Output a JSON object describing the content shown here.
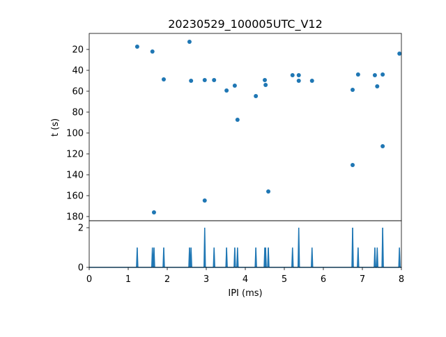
{
  "chart_data": [
    {
      "type": "scatter",
      "title": "20230529_100005UTC_V12",
      "xlabel": "",
      "ylabel": "t (s)",
      "xlim": [
        0,
        8
      ],
      "ylim": [
        183,
        5
      ],
      "y_inverted": true,
      "yticks": [
        20,
        40,
        60,
        80,
        100,
        120,
        140,
        160,
        180
      ],
      "color": "#1f77b4",
      "points": [
        {
          "x": 1.23,
          "y": 17.3
        },
        {
          "x": 1.62,
          "y": 22
        },
        {
          "x": 1.91,
          "y": 48.7
        },
        {
          "x": 2.57,
          "y": 12.7
        },
        {
          "x": 2.61,
          "y": 50
        },
        {
          "x": 2.96,
          "y": 49.3
        },
        {
          "x": 3.2,
          "y": 49.3
        },
        {
          "x": 3.52,
          "y": 59.3
        },
        {
          "x": 3.73,
          "y": 54.7
        },
        {
          "x": 3.8,
          "y": 87.3
        },
        {
          "x": 4.27,
          "y": 64.7
        },
        {
          "x": 4.5,
          "y": 49.3
        },
        {
          "x": 4.52,
          "y": 54
        },
        {
          "x": 5.21,
          "y": 44.7
        },
        {
          "x": 5.37,
          "y": 44.7
        },
        {
          "x": 5.37,
          "y": 50
        },
        {
          "x": 5.71,
          "y": 50
        },
        {
          "x": 6.75,
          "y": 58.7
        },
        {
          "x": 6.89,
          "y": 44
        },
        {
          "x": 7.32,
          "y": 44.7
        },
        {
          "x": 7.38,
          "y": 55.3
        },
        {
          "x": 7.52,
          "y": 44
        },
        {
          "x": 7.95,
          "y": 24
        },
        {
          "x": 4.59,
          "y": 156
        },
        {
          "x": 2.96,
          "y": 164.7
        },
        {
          "x": 1.66,
          "y": 176
        },
        {
          "x": 6.75,
          "y": 130.7
        },
        {
          "x": 7.52,
          "y": 112.7
        }
      ]
    },
    {
      "type": "line",
      "title": "",
      "xlabel": "IPI (ms)",
      "ylabel": "",
      "xlim": [
        0,
        8
      ],
      "ylim": [
        0,
        2.2
      ],
      "xticks": [
        0,
        1,
        2,
        3,
        4,
        5,
        6,
        7,
        8
      ],
      "yticks": [
        0,
        2
      ],
      "color": "#1f77b4",
      "spikes": [
        {
          "x": 1.23,
          "count": 1
        },
        {
          "x": 1.62,
          "count": 1
        },
        {
          "x": 1.66,
          "count": 1
        },
        {
          "x": 1.91,
          "count": 1
        },
        {
          "x": 2.57,
          "count": 1
        },
        {
          "x": 2.61,
          "count": 1
        },
        {
          "x": 2.96,
          "count": 2
        },
        {
          "x": 3.2,
          "count": 1
        },
        {
          "x": 3.52,
          "count": 1
        },
        {
          "x": 3.73,
          "count": 1
        },
        {
          "x": 3.8,
          "count": 1
        },
        {
          "x": 4.27,
          "count": 1
        },
        {
          "x": 4.5,
          "count": 1
        },
        {
          "x": 4.52,
          "count": 1
        },
        {
          "x": 4.59,
          "count": 1
        },
        {
          "x": 5.21,
          "count": 1
        },
        {
          "x": 5.37,
          "count": 2
        },
        {
          "x": 5.71,
          "count": 1
        },
        {
          "x": 6.75,
          "count": 2
        },
        {
          "x": 6.89,
          "count": 1
        },
        {
          "x": 7.32,
          "count": 1
        },
        {
          "x": 7.38,
          "count": 1
        },
        {
          "x": 7.52,
          "count": 2
        },
        {
          "x": 7.95,
          "count": 1
        }
      ]
    }
  ]
}
